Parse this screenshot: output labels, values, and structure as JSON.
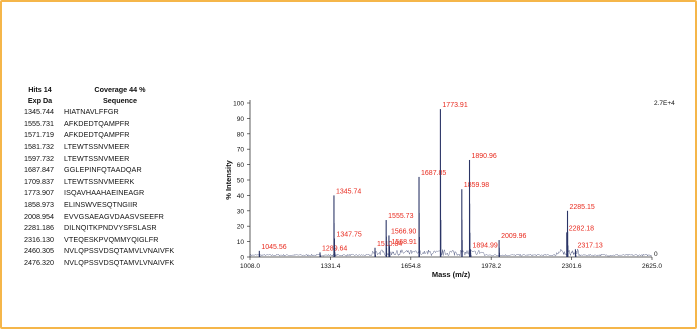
{
  "colors": {
    "border": "#f5b64a",
    "peak_label": "#e8281c",
    "spectrum": "#2b3566",
    "axis": "#333333"
  },
  "table": {
    "hits_label": "Hits 14",
    "coverage_label": "Coverage 44 %",
    "col_exp": "Exp Da",
    "col_seq": "Sequence",
    "rows": [
      {
        "mass": "1345.744",
        "seq": "HIATNAVLFFGR"
      },
      {
        "mass": "1555.731",
        "seq": "AFKDEDTQAMPFR"
      },
      {
        "mass": "1571.719",
        "seq": "AFKDEDTQAMPFR"
      },
      {
        "mass": "1581.732",
        "seq": "LTEWTSSNVMEER"
      },
      {
        "mass": "1597.732",
        "seq": "LTEWTSSNVMEER"
      },
      {
        "mass": "1687.847",
        "seq": "GGLEPINFQTAADQAR"
      },
      {
        "mass": "1709.837",
        "seq": "LTEWTSSNVMEERK"
      },
      {
        "mass": "1773.907",
        "seq": "ISQAVHAAHAEINEAGR"
      },
      {
        "mass": "1858.973",
        "seq": "ELINSWVESQTNGIIR"
      },
      {
        "mass": "2008.954",
        "seq": "EVVGSAEAGVDAASVSEEFR"
      },
      {
        "mass": "2281.186",
        "seq": "DILNQITKPNDVYSFSLASR"
      },
      {
        "mass": "2316.130",
        "seq": "VTEQESKPVQMMYQIGLFR"
      },
      {
        "mass": "2460.305",
        "seq": "NVLQPSSVDSQTAMVLVNAIVFK"
      },
      {
        "mass": "2476.320",
        "seq": "NVLQPSSVDSQTAMVLVNAIVFK"
      }
    ]
  },
  "chart_data": {
    "type": "line",
    "xlabel": "Mass (m/z)",
    "ylabel": "% Intensity",
    "xlim": [
      1008.0,
      2625.0
    ],
    "ylim": [
      0,
      100
    ],
    "x_ticks": [
      "1008.0",
      "1331.4",
      "1654.8",
      "1978.2",
      "2301.6",
      "2625.0"
    ],
    "y_ticks": [
      "0",
      "10",
      "20",
      "30",
      "40",
      "50",
      "60",
      "70",
      "80",
      "90",
      "100"
    ],
    "right_max_label": "2.7E+4",
    "right_zero_label": "0",
    "peaks": [
      {
        "x": 1045.56,
        "y": 4,
        "label": "1045.56"
      },
      {
        "x": 1289.64,
        "y": 3,
        "label": "1289.64"
      },
      {
        "x": 1345.74,
        "y": 40,
        "label": "1345.74"
      },
      {
        "x": 1347.75,
        "y": 12,
        "label": "1347.75"
      },
      {
        "x": 1510.84,
        "y": 6,
        "label": "1510.84"
      },
      {
        "x": 1555.73,
        "y": 24,
        "label": "1555.73"
      },
      {
        "x": 1566.9,
        "y": 14,
        "label": "1566.90"
      },
      {
        "x": 1568.91,
        "y": 7,
        "label": "1568.91"
      },
      {
        "x": 1687.85,
        "y": 52,
        "label": "1687.85"
      },
      {
        "x": 1773.91,
        "y": 96,
        "label": "1773.91"
      },
      {
        "x": 1859.98,
        "y": 44,
        "label": "1859.98"
      },
      {
        "x": 1890.96,
        "y": 63,
        "label": "1890.96"
      },
      {
        "x": 1894.99,
        "y": 5,
        "label": "1894.99"
      },
      {
        "x": 2009.96,
        "y": 11,
        "label": "2009.96"
      },
      {
        "x": 2282.18,
        "y": 16,
        "label": "2282.18"
      },
      {
        "x": 2285.15,
        "y": 30,
        "label": "2285.15"
      },
      {
        "x": 2317.13,
        "y": 5,
        "label": "2317.13"
      }
    ]
  }
}
